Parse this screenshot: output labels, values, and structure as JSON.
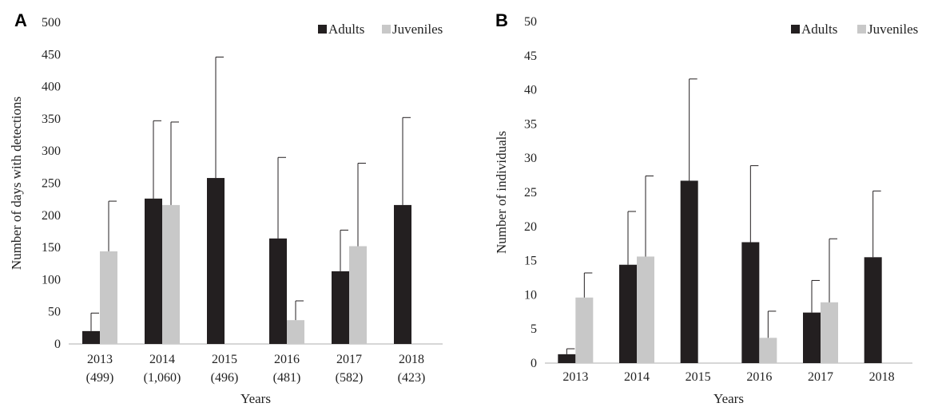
{
  "colors": {
    "adults": "#231f20",
    "juveniles": "#c8c8c8",
    "axis": "#bfbfbf",
    "error": "#231f20"
  },
  "chart_data": [
    {
      "panel": "A",
      "type": "bar",
      "categories": [
        "2013",
        "2014",
        "2015",
        "2016",
        "2017",
        "2018"
      ],
      "category_sublabels": [
        "(499)",
        "(1,060)",
        "(496)",
        "(481)",
        "(582)",
        "(423)"
      ],
      "series": [
        {
          "name": "Adults",
          "values": [
            20,
            226,
            258,
            164,
            113,
            216
          ],
          "errors": [
            28,
            121,
            188,
            126,
            64,
            136
          ]
        },
        {
          "name": "Juveniles",
          "values": [
            144,
            216,
            null,
            37,
            152,
            null
          ],
          "errors": [
            78,
            129,
            null,
            30,
            129,
            null
          ]
        }
      ],
      "xlabel": "Years",
      "ylabel": "Number of days with detections",
      "ylim": [
        0,
        500
      ],
      "yticks": [
        0,
        50,
        100,
        150,
        200,
        250,
        300,
        350,
        400,
        450,
        500
      ],
      "grid": false,
      "legend": "top-right"
    },
    {
      "panel": "B",
      "type": "bar",
      "categories": [
        "2013",
        "2014",
        "2015",
        "2016",
        "2017",
        "2018"
      ],
      "series": [
        {
          "name": "Adults",
          "values": [
            1.3,
            14.4,
            26.7,
            17.7,
            7.4,
            15.5
          ],
          "errors": [
            0.8,
            7.8,
            14.9,
            11.2,
            4.7,
            9.7
          ]
        },
        {
          "name": "Juveniles",
          "values": [
            9.6,
            15.6,
            null,
            3.7,
            8.9,
            null
          ],
          "errors": [
            3.6,
            11.8,
            null,
            3.9,
            9.3,
            null
          ]
        }
      ],
      "xlabel": "Years",
      "ylabel": "Number of individuals",
      "ylim": [
        0,
        50
      ],
      "yticks": [
        0,
        5,
        10,
        15,
        20,
        25,
        30,
        35,
        40,
        45,
        50
      ],
      "grid": false,
      "legend": "top-right"
    }
  ]
}
